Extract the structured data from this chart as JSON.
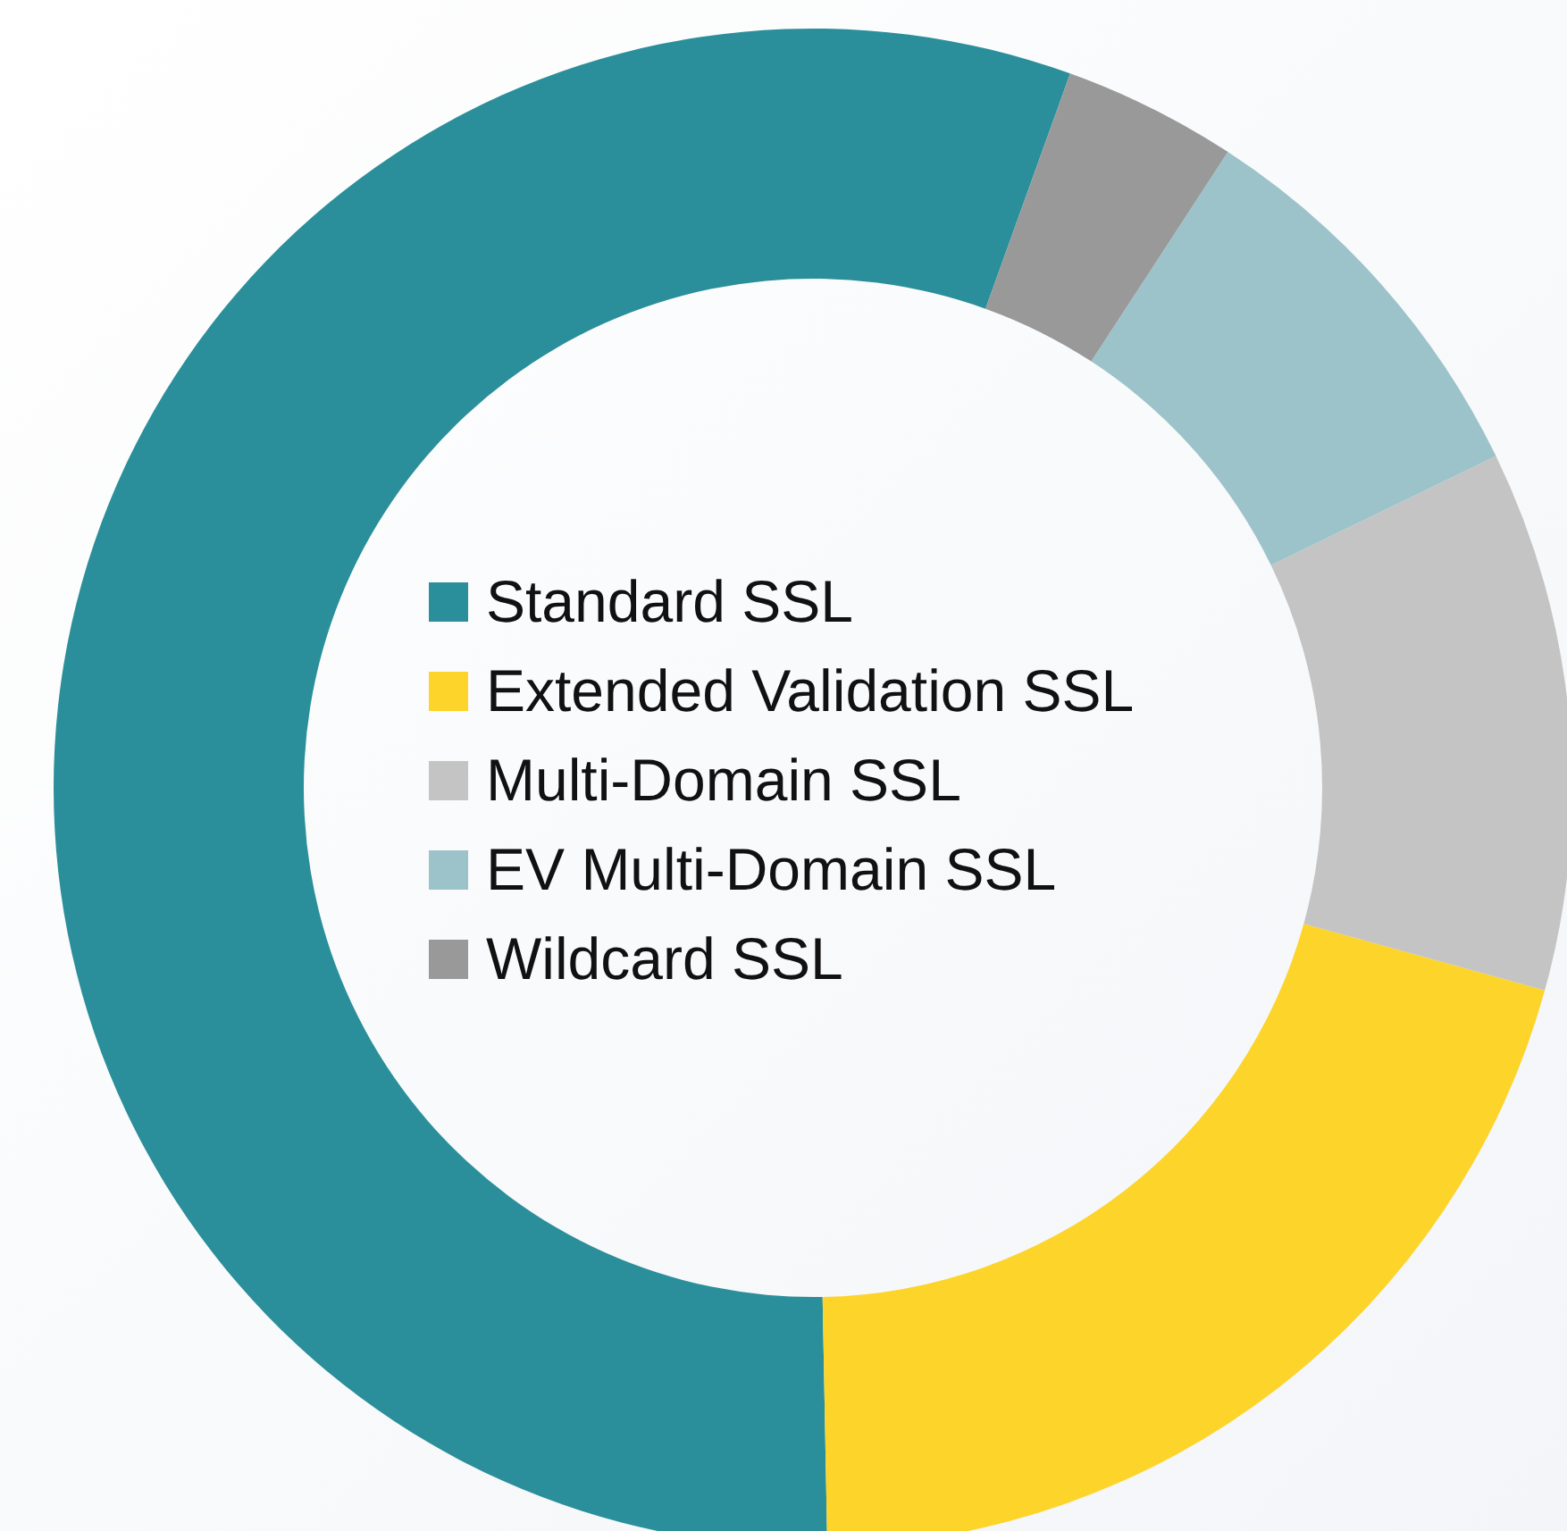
{
  "chart_data": {
    "type": "donut",
    "categories": [
      "Standard SSL",
      "Extended Validation SSL",
      "Multi-Domain SSL",
      "EV Multi-Domain SSL",
      "Wildcard SSL"
    ],
    "values": [
      55.8,
      20.4,
      11.5,
      8.6,
      3.7
    ],
    "colors": [
      "#2a8f9a",
      "#fdd42a",
      "#c4c4c4",
      "#9bc3c9",
      "#999999"
    ],
    "legend": "center"
  }
}
